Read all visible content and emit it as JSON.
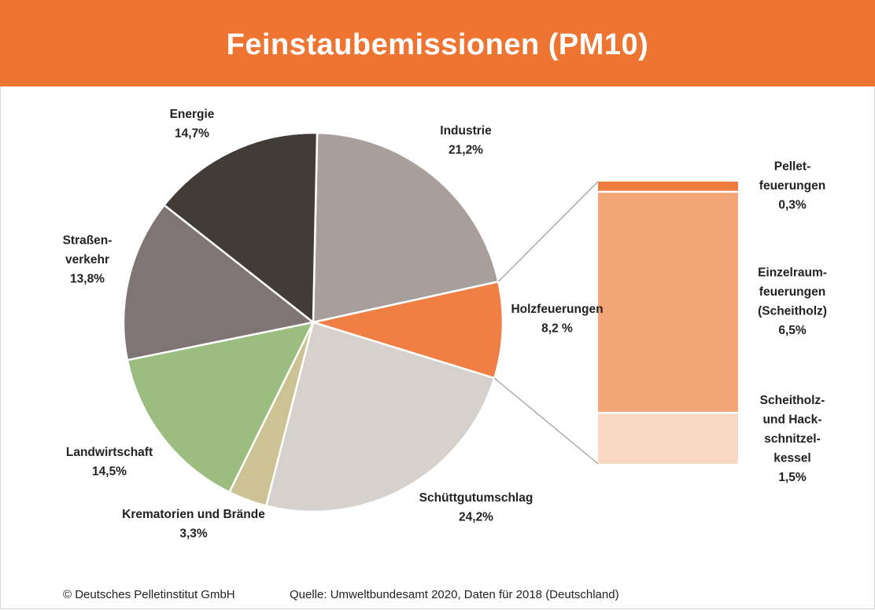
{
  "header": {
    "title": "Feinstaubemissionen (PM10)"
  },
  "chart_data": [
    {
      "type": "pie",
      "title": "Feinstaubemissionen (PM10)",
      "start_angle_deg": 1.2,
      "slices": [
        {
          "key": "industrie",
          "lines": [
            "Industrie",
            "21,2%"
          ],
          "value": 21.2,
          "color": "#a89e9b"
        },
        {
          "key": "holzfeuerungen",
          "lines": [
            "Holzfeuerungen",
            "8,2 %"
          ],
          "value": 8.2,
          "color": "#ef7f45"
        },
        {
          "key": "schuettgutumschlag",
          "lines": [
            "Schüttgutumschlag",
            "24,2%"
          ],
          "value": 24.2,
          "color": "#d7d1ce"
        },
        {
          "key": "krematorien",
          "lines": [
            "Krematorien und Brände",
            "3,3%"
          ],
          "value": 3.3,
          "color": "#cdc293"
        },
        {
          "key": "landwirtschaft",
          "lines": [
            "Landwirtschaft",
            "14,5%"
          ],
          "value": 14.5,
          "color": "#9bbd80"
        },
        {
          "key": "strassenverkehr",
          "lines": [
            "Straßen-",
            "verkehr",
            "13,8%"
          ],
          "value": 13.8,
          "color": "#7e7574"
        },
        {
          "key": "energie",
          "lines": [
            "Energie",
            "14,7%"
          ],
          "value": 14.7,
          "color": "#423b38"
        }
      ]
    },
    {
      "type": "bar",
      "stacked": true,
      "parent": "holzfeuerungen",
      "segments": [
        {
          "key": "pellet",
          "lines": [
            "Pellet-",
            "feuerungen",
            "0,3%"
          ],
          "value": 0.3,
          "color": "#ef7c3f"
        },
        {
          "key": "einzelraum",
          "lines": [
            "Einzelraum-",
            "feuerungen",
            "(Scheitholz)",
            "6,5%"
          ],
          "value": 6.5,
          "color": "#f4a577"
        },
        {
          "key": "scheitholz",
          "lines": [
            "Scheitholz-",
            "und Hack-",
            "schnitzel-",
            "kessel",
            "1,5%"
          ],
          "value": 1.5,
          "color": "#fad9c4"
        }
      ]
    }
  ],
  "footer": {
    "copyright": "© Deutsches Pelletinstitut GmbH",
    "source": "Quelle: Umweltbundesamt 2020, Daten für 2018 (Deutschland)"
  }
}
